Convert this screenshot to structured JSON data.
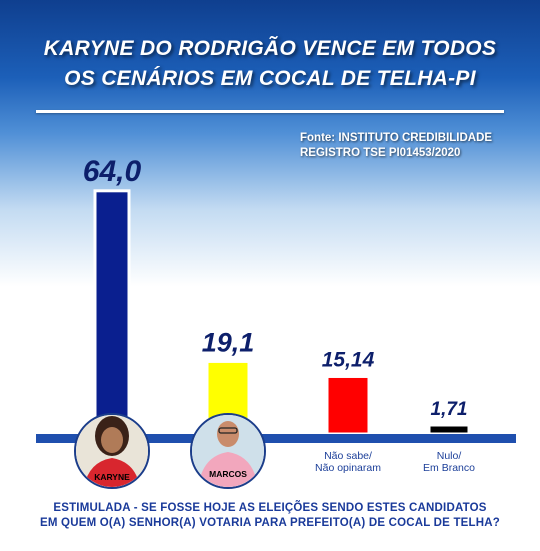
{
  "header": {
    "title_line1": "KARYNE DO RODRIGÃO VENCE EM TODOS",
    "title_line2": "OS CENÁRIOS EM COCAL DE TELHA-PI"
  },
  "source": {
    "line1": "Fonte: INSTITUTO CREDIBILIDADE",
    "line2": "REGISTRO TSE PI01453/2020"
  },
  "chart_data": {
    "type": "bar",
    "categories": [
      "KARYNE",
      "MARCOS",
      "Não sabe/ Não opinaram",
      "Nulo/ Em Branco"
    ],
    "values": [
      64.0,
      19.1,
      15.14,
      1.71
    ],
    "value_labels": [
      "64,0",
      "19,1",
      "15,14",
      "1,71"
    ],
    "category_labels": [
      [
        "KARYNE"
      ],
      [
        "MARCOS"
      ],
      [
        "Não sabe/",
        "Não opinaram"
      ],
      [
        "Nulo/",
        "Em Branco"
      ]
    ],
    "bar_colors": [
      "#0a1f8f",
      "#ffff00",
      "#ff0000",
      "#000000"
    ],
    "baseline_color": "#1f4fae",
    "grid": false
  },
  "question": {
    "line1": "ESTIMULADA - SE FOSSE HOJE AS ELEIÇÕES SENDO ESTES CANDIDATOS",
    "line2": "EM QUEM O(A) SENHOR(A) VOTARIA PARA PREFEITO(A) DE COCAL DE TELHA?"
  }
}
